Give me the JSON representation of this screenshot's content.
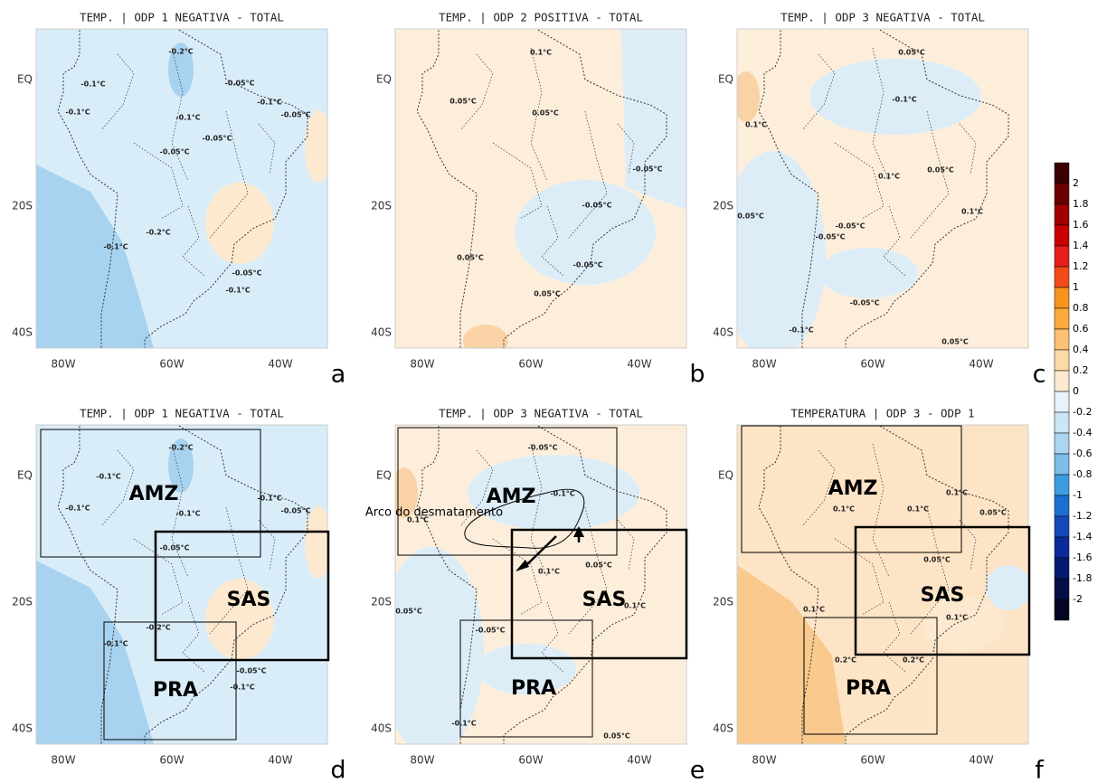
{
  "axes": {
    "y_ticks": [
      "EQ",
      "20S",
      "40S"
    ],
    "x_ticks": [
      "80W",
      "60W",
      "40W"
    ]
  },
  "panels": [
    {
      "title": "TEMP. | ODP 1 NEGATIVA - TOTAL",
      "letter": "a",
      "contour_labels": [
        "-0.2°C",
        "-0.1°C",
        "-0.1°C",
        "-0.1°C",
        "-0.05°C",
        "-0.1°C",
        "-0.05°C",
        "-0.05°C",
        "-0.05°C",
        "-0.2°C",
        "-0.1°C",
        "-0.05°C",
        "-0.1°C"
      ]
    },
    {
      "title": "TEMP. | ODP 2 POSITIVA - TOTAL",
      "letter": "b",
      "contour_labels": [
        "0.1°C",
        "0.05°C",
        "0.05°C",
        "-0.05°C",
        "-0.05°C",
        "-0.05°C",
        "0.05°C",
        "0.05°C"
      ]
    },
    {
      "title": "TEMP. | ODP 3 NEGATIVA - TOTAL",
      "letter": "c",
      "contour_labels": [
        "0.05°C",
        "-0.1°C",
        "0.1°C",
        "0.1°C",
        "0.05°C",
        "0.1°C",
        "0.05°C",
        "-0.05°C",
        "-0.05°C",
        "-0.05°C",
        "-0.1°C",
        "0.05°C"
      ]
    },
    {
      "title": "TEMP. | ODP 1 NEGATIVA - TOTAL",
      "letter": "d",
      "contour_labels": [
        "-0.2°C",
        "-0.1°C",
        "-0.1°C",
        "-0.1°C",
        "-0.1°C",
        "-0.05°C",
        "-0.05°C",
        "-0.2°C",
        "-0.1°C",
        "-0.05°C",
        "-0.1°C"
      ],
      "regions": [
        "AMZ",
        "SAS",
        "PRA"
      ]
    },
    {
      "title": "TEMP. | ODP 3 NEGATIVA - TOTAL",
      "letter": "e",
      "contour_labels": [
        "-0.05°C",
        "-0.1°C",
        "0.1°C",
        "0.1°C",
        "0.05°C",
        "0.1°C",
        "0.05°C",
        "-0.05°C",
        "-0.1°C",
        "0.05°C"
      ],
      "regions": [
        "AMZ",
        "SAS",
        "PRA"
      ],
      "annotation": "Arco do desmatamento"
    },
    {
      "title": "TEMPERATURA | ODP 3 - ODP 1",
      "letter": "f",
      "contour_labels": [
        "0.1°C",
        "0.1°C",
        "0.1°C",
        "0.05°C",
        "0.05°C",
        "0.1°C",
        "0.1°C",
        "0.2°C",
        "0.2°C"
      ],
      "regions": [
        "AMZ",
        "SAS",
        "PRA"
      ]
    }
  ],
  "colorbar": {
    "ticks": [
      2,
      1.8,
      1.6,
      1.4,
      1.2,
      1,
      0.8,
      0.6,
      0.4,
      0.2,
      0,
      -0.2,
      -0.4,
      -0.6,
      -0.8,
      -1,
      -1.2,
      -1.4,
      -1.6,
      -1.8,
      -2
    ]
  }
}
